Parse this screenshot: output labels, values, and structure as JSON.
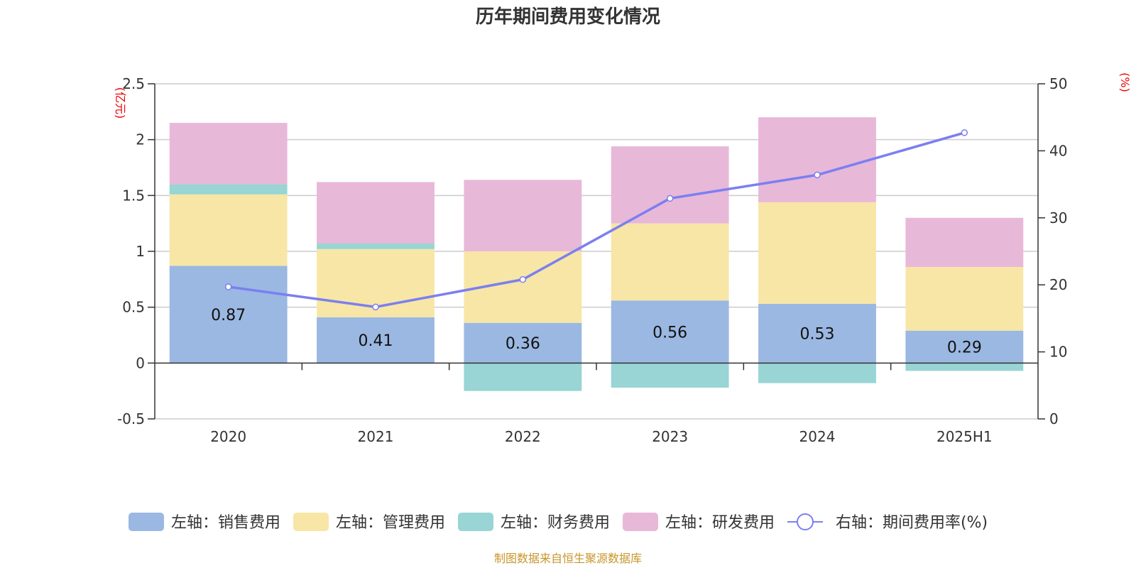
{
  "chart_data": {
    "type": "bar",
    "title": "历年期间费用变化情况",
    "categories": [
      "2020",
      "2021",
      "2022",
      "2023",
      "2024",
      "2025H1"
    ],
    "left_axis": {
      "unit": "(亿元)",
      "ylim": [
        -0.5,
        2.5
      ],
      "ticks": [
        "-0.5",
        "0",
        "0.5",
        "1",
        "1.5",
        "2",
        "2.5"
      ]
    },
    "right_axis": {
      "unit": "(%)",
      "ylim": [
        0,
        50
      ],
      "ticks": [
        "0",
        "10",
        "20",
        "30",
        "40",
        "50"
      ]
    },
    "stacked": true,
    "grid": true,
    "legend_position": "bottom",
    "series": [
      {
        "name": "左轴：销售费用",
        "axis": "left",
        "type": "bar",
        "color": "#9bb8e2",
        "values": [
          0.87,
          0.41,
          0.36,
          0.56,
          0.53,
          0.29
        ],
        "labels": [
          "0.87",
          "0.41",
          "0.36",
          "0.56",
          "0.53",
          "0.29"
        ]
      },
      {
        "name": "左轴：管理费用",
        "axis": "left",
        "type": "bar",
        "color": "#f7e6a6",
        "values": [
          0.64,
          0.61,
          0.64,
          0.69,
          0.91,
          0.57
        ]
      },
      {
        "name": "左轴：财务费用",
        "axis": "left",
        "type": "bar",
        "color": "#98d5d4",
        "values": [
          0.09,
          0.05,
          -0.25,
          -0.22,
          -0.18,
          -0.07
        ]
      },
      {
        "name": "左轴：研发费用",
        "axis": "left",
        "type": "bar",
        "color": "#e8b8d9",
        "values": [
          0.55,
          0.55,
          0.64,
          0.69,
          0.76,
          0.44
        ]
      },
      {
        "name": "右轴：期间费用率(%)",
        "axis": "right",
        "type": "line",
        "color": "#7b7ff0",
        "values": [
          19.7,
          16.7,
          20.8,
          32.9,
          36.4,
          42.7
        ]
      }
    ]
  },
  "source_text": "制图数据来自恒生聚源数据库"
}
